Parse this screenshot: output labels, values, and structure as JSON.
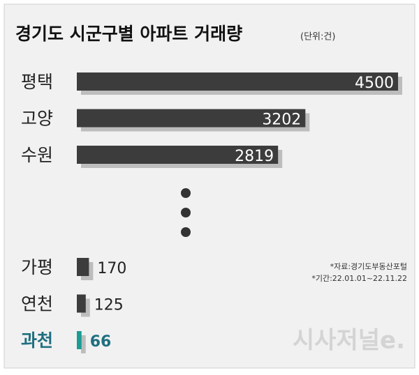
{
  "chart_data": {
    "type": "bar",
    "orientation": "horizontal",
    "title": "경기도 시군구별 아파트 거래량",
    "subtitle": "(단위:건)",
    "categories": [
      "평택",
      "고양",
      "수원",
      "가평",
      "연천",
      "과천"
    ],
    "values": [
      4500,
      3202,
      2819,
      170,
      125,
      66
    ],
    "colors": [
      "#3c3c3c",
      "#3c3c3c",
      "#3c3c3c",
      "#3c3c3c",
      "#3c3c3c",
      "#1b9c93"
    ],
    "label_colors": [
      "#222222",
      "#222222",
      "#222222",
      "#222222",
      "#222222",
      "#1f6f80"
    ],
    "notes": [
      "*자료:경기도부동산포털",
      "*기간:22.01.01~22.11.22"
    ],
    "watermark": "시사저널e."
  }
}
